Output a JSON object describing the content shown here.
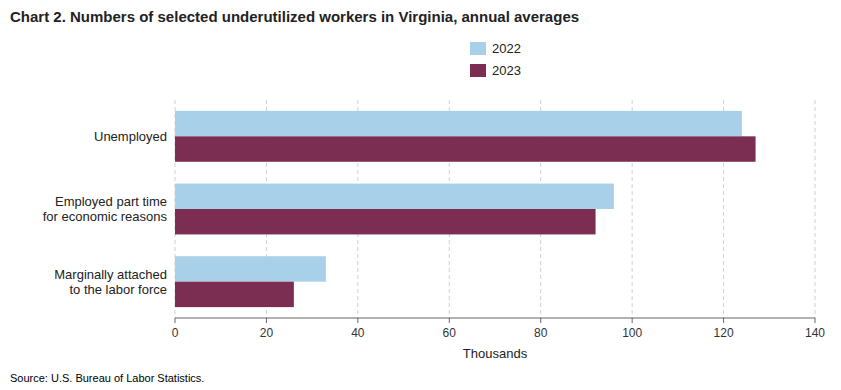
{
  "chart_data": {
    "type": "bar",
    "orientation": "horizontal",
    "title": "Chart 2. Numbers of selected underutilized workers in Virginia, annual averages",
    "categories": [
      "Unemployed",
      "Employed part time\nfor economic reasons",
      "Marginally attached\nto the labor force"
    ],
    "series": [
      {
        "name": "2022",
        "color": "#a8d0e8",
        "values": [
          124,
          96,
          33
        ]
      },
      {
        "name": "2023",
        "color": "#7b2d52",
        "values": [
          127,
          92,
          26
        ]
      }
    ],
    "xlabel": "Thousands",
    "xlim": [
      0,
      140
    ],
    "xticks": [
      0,
      20,
      40,
      60,
      80,
      100,
      120,
      140
    ],
    "grid": true,
    "legend": "top",
    "annotations": [
      "Source: U.S. Bureau of Labor Statistics."
    ]
  }
}
